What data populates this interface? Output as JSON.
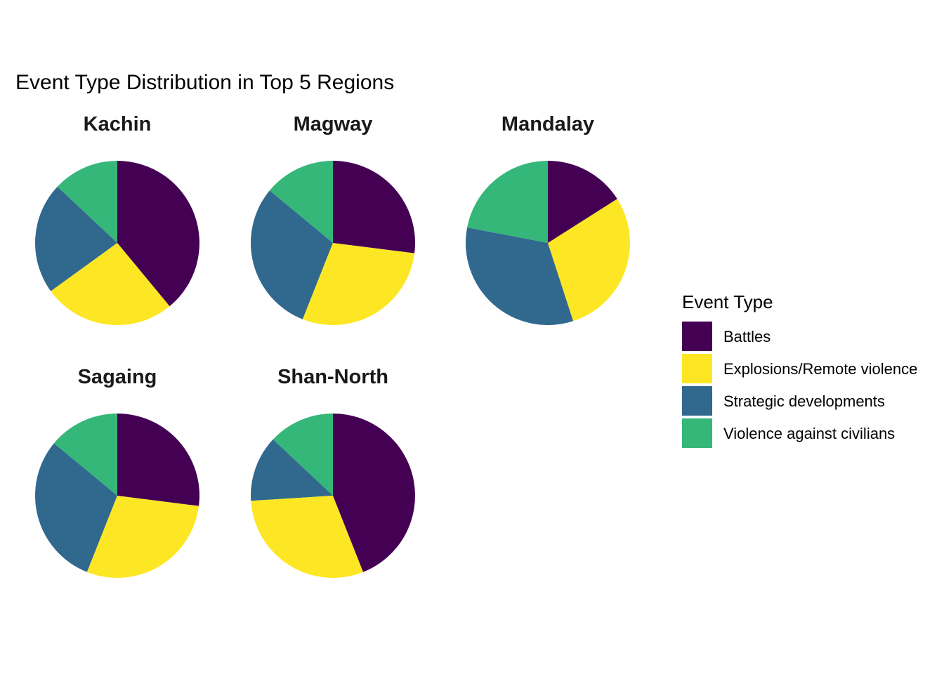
{
  "chart_data": {
    "type": "pie",
    "title": "Event Type Distribution in Top 5 Regions",
    "legend": {
      "title": "Event Type",
      "placement": "right",
      "entries": [
        {
          "name": "Battles",
          "color": "#440154"
        },
        {
          "name": "Explosions/Remote violence",
          "color": "#FDE725"
        },
        {
          "name": "Strategic developments",
          "color": "#31688E"
        },
        {
          "name": "Violence against civilians",
          "color": "#35B779"
        }
      ]
    },
    "categories": [
      "Battles",
      "Explosions/Remote violence",
      "Strategic developments",
      "Violence against civilians"
    ],
    "colors": [
      "#440154",
      "#FDE725",
      "#31688E",
      "#35B779"
    ],
    "facets": [
      {
        "region": "Kachin",
        "values": [
          39,
          26,
          22,
          13
        ]
      },
      {
        "region": "Magway",
        "values": [
          27,
          29,
          30,
          14
        ]
      },
      {
        "region": "Mandalay",
        "values": [
          16,
          29,
          33,
          22
        ]
      },
      {
        "region": "Sagaing",
        "values": [
          27,
          29,
          30,
          14
        ]
      },
      {
        "region": "Shan-North",
        "values": [
          44,
          30,
          13,
          13
        ]
      }
    ]
  }
}
